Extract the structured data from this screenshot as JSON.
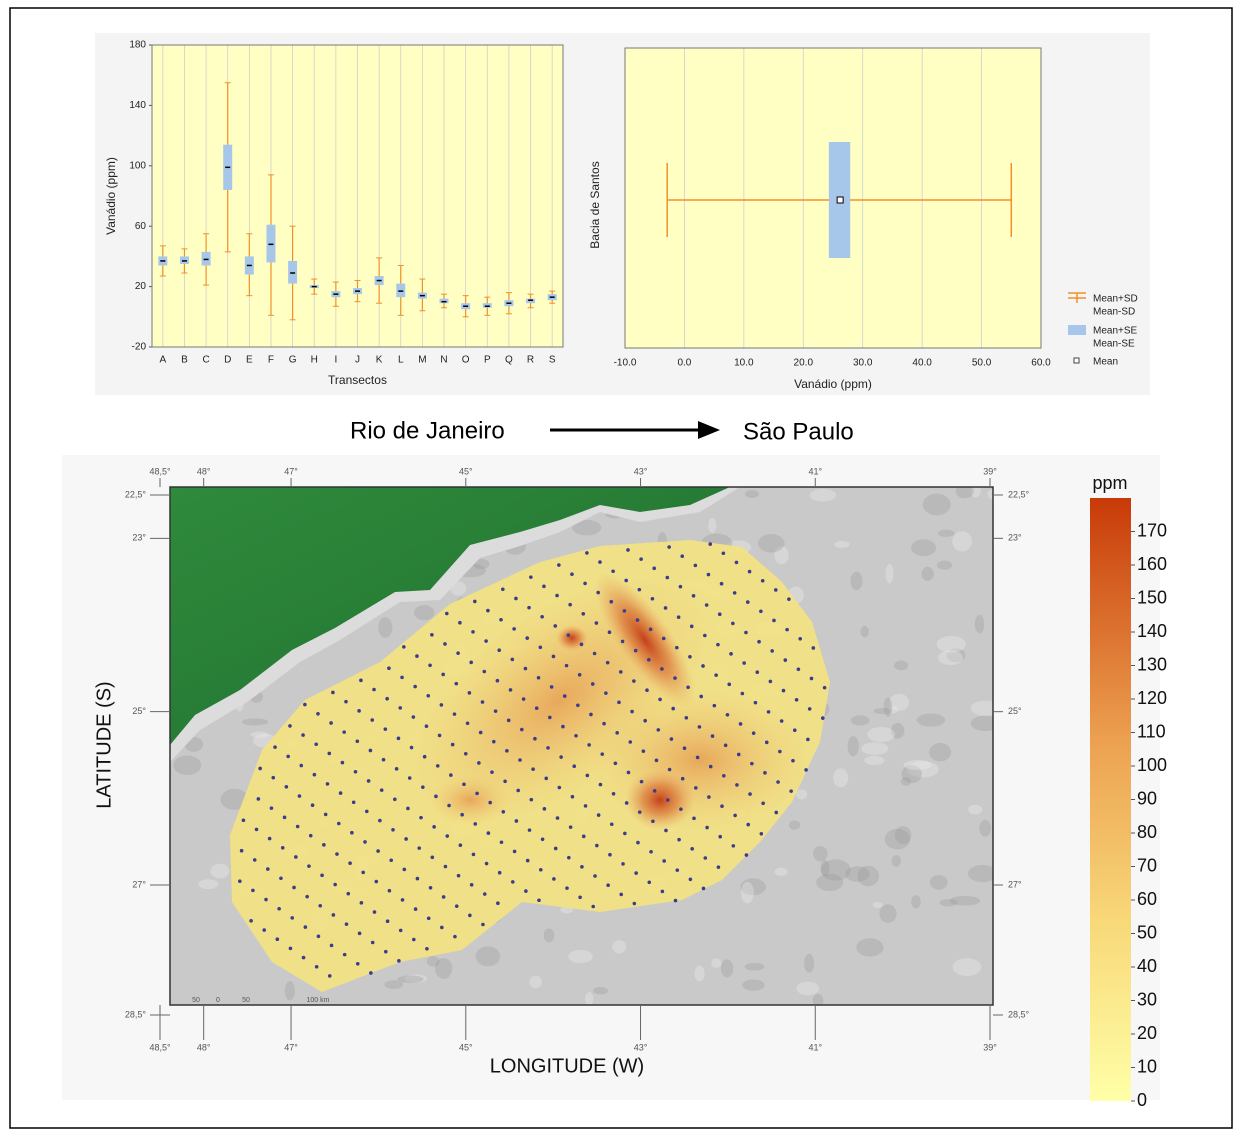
{
  "chart_data": [
    {
      "type": "box",
      "ylabel": "Vanádio (ppm)",
      "xlabel": "Transectos",
      "categories": [
        "A",
        "B",
        "C",
        "D",
        "E",
        "F",
        "G",
        "H",
        "I",
        "J",
        "K",
        "L",
        "M",
        "N",
        "O",
        "P",
        "Q",
        "R",
        "S"
      ],
      "mean": [
        37,
        37,
        38,
        99,
        34,
        48,
        29,
        20,
        15,
        17,
        24,
        17,
        14,
        10,
        7,
        7,
        9,
        11,
        13
      ],
      "se_low": [
        34,
        35,
        34,
        84,
        28,
        36,
        22,
        19,
        13,
        15,
        21,
        13,
        12,
        9,
        5,
        6,
        7,
        9,
        11
      ],
      "se_high": [
        40,
        40,
        43,
        114,
        40,
        61,
        37,
        21,
        17,
        19,
        27,
        22,
        16,
        12,
        9,
        9,
        11,
        12,
        15
      ],
      "sd_low": [
        27,
        29,
        21,
        43,
        14,
        1,
        -2,
        15,
        7,
        10,
        9,
        1,
        4,
        6,
        0,
        1,
        2,
        6,
        9
      ],
      "sd_high": [
        47,
        45,
        55,
        155,
        55,
        94,
        60,
        25,
        23,
        24,
        39,
        34,
        25,
        15,
        14,
        13,
        16,
        15,
        17
      ],
      "ylim": [
        -20,
        180
      ],
      "yticks": [
        -20,
        20,
        60,
        100,
        140,
        180
      ],
      "sd_color": "#f0902a",
      "se_color": "#a7c7ea",
      "mean_color": "#000000",
      "plot_color": "#ffffc4",
      "grid": true
    },
    {
      "type": "hbox",
      "ylabel": "Bacia de Santos",
      "xlabel": "Vanádio (ppm)",
      "mean": [
        26.2
      ],
      "se_low": [
        24.3
      ],
      "se_high": [
        27.9
      ],
      "sd_low": [
        -2.9
      ],
      "sd_high": [
        55.0
      ],
      "xlim": [
        -10,
        60
      ],
      "xticks": [
        {
          "value": -10,
          "label": "-10.0"
        },
        {
          "value": 0,
          "label": "0.0"
        },
        {
          "value": 10,
          "label": "10.0"
        },
        {
          "value": 20,
          "label": "20.0"
        },
        {
          "value": 30,
          "label": "30.0"
        },
        {
          "value": 40,
          "label": "40.0"
        },
        {
          "value": 50,
          "label": "50.0"
        },
        {
          "value": 60,
          "label": "60.0"
        }
      ],
      "sd_color": "#f0902a",
      "se_color": "#a7c7ea",
      "mean_color": "#000000",
      "plot_color": "#ffffc4",
      "grid": true,
      "legend": {
        "position": "outside-right",
        "entries": [
          [
            "Mean+SD",
            "Mean-SD"
          ],
          [
            "Mean+SE",
            "Mean-SE"
          ],
          [
            "Mean"
          ]
        ]
      }
    }
  ],
  "route": {
    "from": "Rio de Janeiro",
    "to": "São Paulo"
  },
  "map": {
    "xlabel": "LONGITUDE (W)",
    "ylabel": "LATITUDE (S)",
    "xlim": [
      48.5,
      39
    ],
    "ylim": [
      22.5,
      28.5
    ],
    "xticks": [
      {
        "value": 48.5,
        "label": "48,5°"
      },
      {
        "value": 48,
        "label": "48°"
      },
      {
        "value": 47,
        "label": "47°"
      },
      {
        "value": 45,
        "label": "45°"
      },
      {
        "value": 43,
        "label": "43°"
      },
      {
        "value": 41,
        "label": "41°"
      },
      {
        "value": 39,
        "label": "39°"
      }
    ],
    "yticks": [
      {
        "value": 22.5,
        "label": "22,5°"
      },
      {
        "value": 23,
        "label": "23°"
      },
      {
        "value": 25,
        "label": "25°"
      },
      {
        "value": 27,
        "label": "27°"
      },
      {
        "value": 28.5,
        "label": "28,5°"
      }
    ],
    "scale_labels": [
      "50",
      "0",
      "50",
      "100 km"
    ],
    "colorbar": {
      "title": "ppm",
      "lim": [
        0,
        180
      ],
      "ticks": [
        0,
        10,
        20,
        30,
        40,
        50,
        60,
        70,
        80,
        90,
        100,
        110,
        120,
        130,
        140,
        150,
        160,
        170
      ]
    }
  }
}
